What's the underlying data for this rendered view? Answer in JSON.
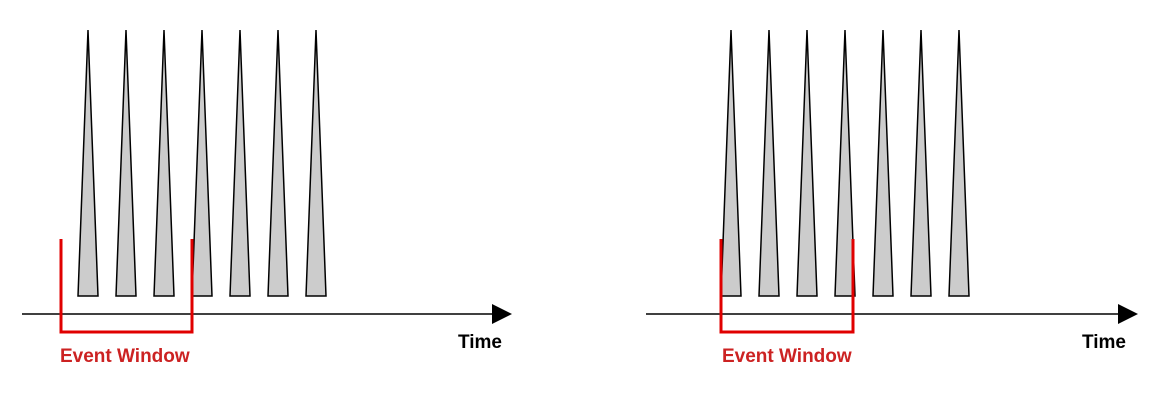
{
  "panels": [
    {
      "axis_label": "Time",
      "window_label": "Event Window",
      "pulse_count": 7
    },
    {
      "axis_label": "Time",
      "window_label": "Event Window",
      "pulse_count": 7
    }
  ],
  "colors": {
    "pulse_fill": "#cccccc",
    "pulse_stroke": "#000000",
    "axis": "#000000",
    "window": "#e00000",
    "window_label": "#cc2222"
  }
}
